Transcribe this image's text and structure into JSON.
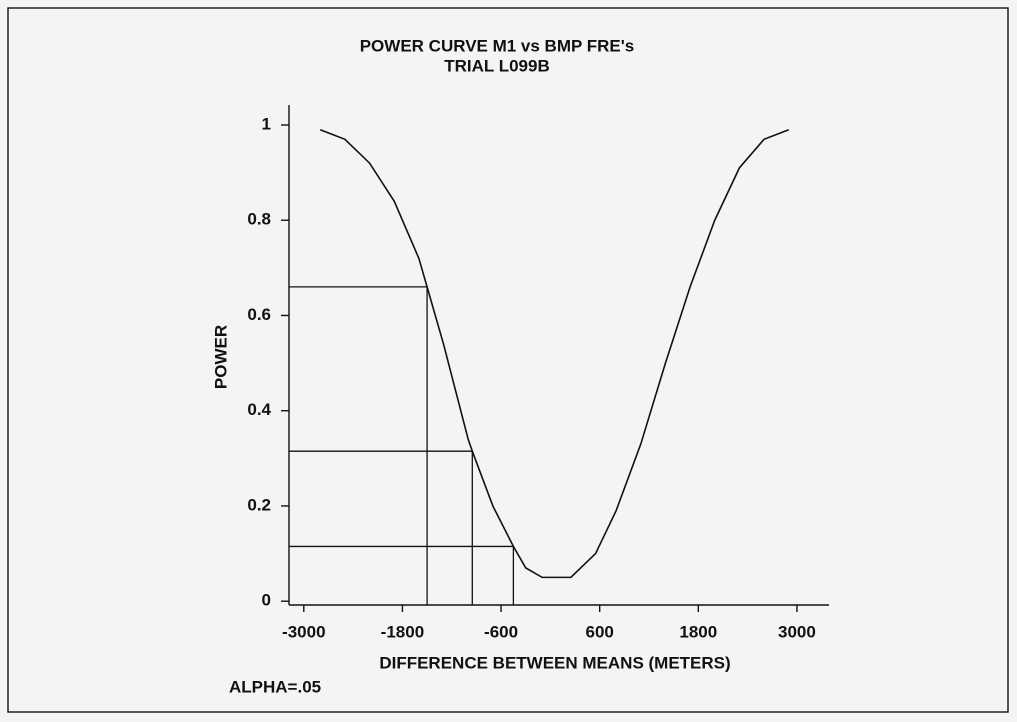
{
  "chart_data": {
    "type": "line",
    "title": "POWER CURVE  M1 vs BMP  FRE's",
    "subtitle": "TRIAL L099B",
    "x_label": "DIFFERENCE BETWEEN MEANS (METERS)",
    "y_label": "POWER",
    "annotation": "ALPHA=.05",
    "x": [
      -2800,
      -2500,
      -2200,
      -1900,
      -1600,
      -1500,
      -1300,
      -1000,
      -950,
      -700,
      -450,
      -300,
      -100,
      250,
      550,
      800,
      1100,
      1400,
      1700,
      2000,
      2300,
      2600,
      2900
    ],
    "series": [
      {
        "name": "POWER",
        "color": "#111111",
        "values": [
          0.99,
          0.97,
          0.92,
          0.84,
          0.72,
          0.66,
          0.54,
          0.34,
          0.315,
          0.2,
          0.115,
          0.07,
          0.05,
          0.05,
          0.1,
          0.19,
          0.33,
          0.5,
          0.66,
          0.8,
          0.91,
          0.97,
          0.99
        ]
      }
    ],
    "markers": {
      "x": [
        -1500,
        -950,
        -450
      ],
      "y": [
        0.66,
        0.315,
        0.115
      ]
    },
    "xlim": [
      -3180,
      3390
    ],
    "ylim": [
      -0.008,
      1.042
    ],
    "xticks": [
      -3000,
      -1800,
      -600,
      600,
      1800,
      3000
    ],
    "yticks": [
      0,
      0.2,
      0.4,
      0.6,
      0.8,
      1
    ],
    "grid": false
  }
}
